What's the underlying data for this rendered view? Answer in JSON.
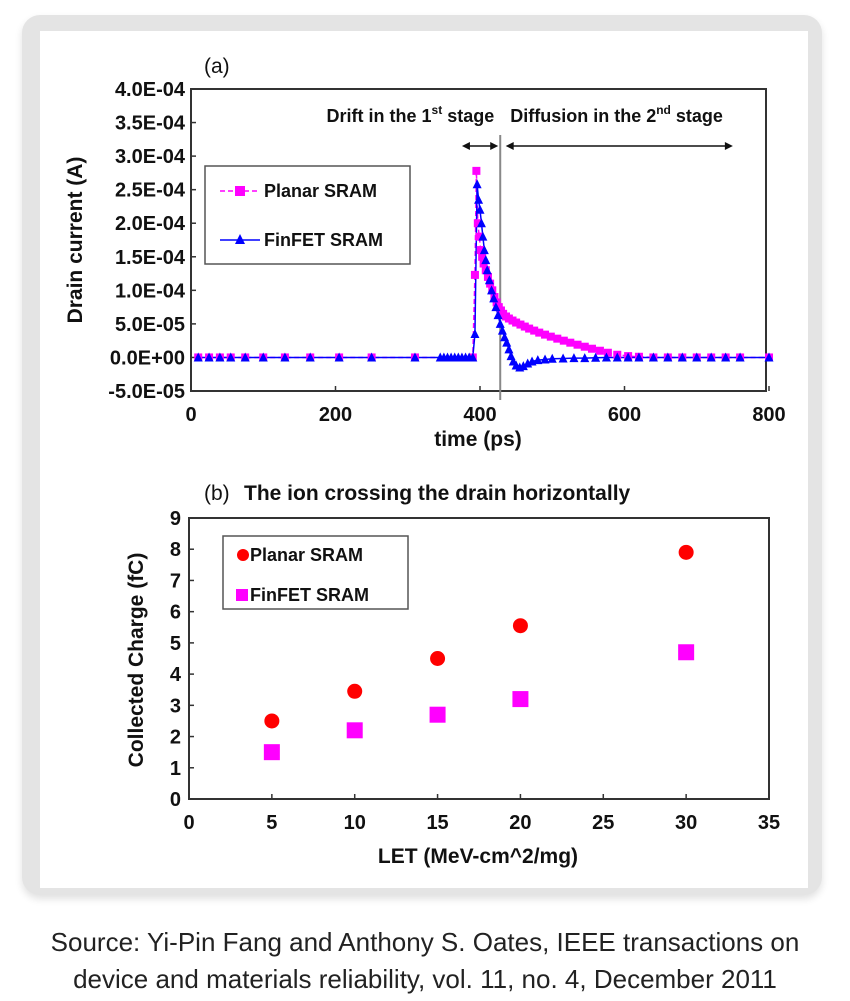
{
  "caption": {
    "line1": "Source: Yi-Pin Fang and Anthony S. Oates, IEEE transactions on",
    "line2": "device and materials reliability, vol. 11, no. 4, December 2011"
  },
  "colors": {
    "planar": "#ff00ff",
    "finfet": "#0000ff",
    "planar_b": "#ff0000",
    "finfet_b": "#ff00ff",
    "frame": "#e4e4e4",
    "axis": "#333333"
  },
  "chart_data": [
    {
      "type": "line",
      "panel_label": "(a)",
      "title": "",
      "xlabel": "time (ps)",
      "ylabel": "Drain current (A)",
      "xlim": [
        0,
        800
      ],
      "ylim": [
        -5e-05,
        0.0004
      ],
      "x_ticks": [
        0,
        200,
        400,
        600,
        800
      ],
      "x_tick_labels": [
        "0",
        "200",
        "400",
        "600",
        "800"
      ],
      "y_ticks": [
        0.0004,
        0.00035,
        0.0003,
        0.00025,
        0.0002,
        0.00015,
        0.0001,
        5e-05,
        0,
        -5e-05
      ],
      "y_tick_labels": [
        "4.0E-04",
        "3.5E-04",
        "3.0E-04",
        "2.5E-04",
        "2.0E-04",
        "1.5E-04",
        "1.0E-04",
        "5.0E-05",
        "0.0E+00",
        "-5.0E-05"
      ],
      "grid": false,
      "legend": {
        "placement": "upper-left",
        "entries": [
          "Planar SRAM",
          "FinFET SRAM"
        ]
      },
      "annotations": {
        "divider_x": 428,
        "stage1": {
          "text": "Drift in the 1",
          "sup": "st",
          "tail": " stage",
          "arrow_from": 375,
          "arrow_to": 428
        },
        "stage2": {
          "text": "Diffusion in the 2",
          "sup": "nd",
          "tail": " stage",
          "arrow_from": 430,
          "arrow_to": 750
        }
      },
      "series": [
        {
          "name": "Planar SRAM",
          "marker": "square",
          "x": [
            10,
            25,
            40,
            55,
            75,
            100,
            130,
            165,
            205,
            250,
            310,
            390,
            393,
            395,
            397,
            399,
            401,
            403,
            405,
            408,
            411,
            414,
            417,
            420,
            423,
            426,
            429,
            432,
            436,
            440,
            445,
            450,
            456,
            462,
            468,
            475,
            482,
            490,
            498,
            507,
            516,
            525,
            535,
            545,
            555,
            566,
            577,
            590,
            605,
            620,
            640,
            660,
            680,
            700,
            720,
            740,
            760,
            800
          ],
          "y": [
            0,
            0,
            0,
            0,
            0,
            0,
            0,
            0,
            0,
            0,
            0,
            0,
            0.000123,
            0.000278,
            0.0002,
            0.00018,
            0.00016,
            0.00015,
            0.00014,
            0.00013,
            0.00012,
            0.00011,
            0.0001,
            9e-05,
            8.2e-05,
            7.5e-05,
            7e-05,
            6.5e-05,
            6.1e-05,
            5.8e-05,
            5.5e-05,
            5.2e-05,
            4.9e-05,
            4.6e-05,
            4.3e-05,
            4e-05,
            3.7e-05,
            3.4e-05,
            3.1e-05,
            2.8e-05,
            2.5e-05,
            2.2e-05,
            1.9e-05,
            1.6e-05,
            1.3e-05,
            1e-05,
            7e-06,
            4e-06,
            2e-06,
            1e-06,
            0,
            0,
            0,
            0,
            0,
            0,
            0,
            0
          ]
        },
        {
          "name": "FinFET SRAM",
          "marker": "triangle",
          "x": [
            10,
            25,
            40,
            55,
            75,
            100,
            130,
            165,
            205,
            250,
            310,
            345,
            350,
            355,
            360,
            365,
            370,
            375,
            380,
            385,
            390,
            393,
            396,
            398,
            400,
            402,
            404,
            406,
            408,
            410,
            413,
            416,
            419,
            422,
            425,
            428,
            431,
            434,
            437,
            440,
            443,
            446,
            450,
            455,
            460,
            466,
            472,
            480,
            490,
            500,
            515,
            530,
            545,
            560,
            575,
            590,
            605,
            620,
            640,
            660,
            680,
            700,
            720,
            740,
            760,
            800
          ],
          "y": [
            0,
            0,
            0,
            0,
            0,
            0,
            0,
            0,
            0,
            0,
            0,
            0,
            0,
            0,
            0,
            0,
            0,
            0,
            0,
            0,
            0,
            3.5e-05,
            0.000258,
            0.000235,
            0.00022,
            0.0002,
            0.00018,
            0.00016,
            0.000145,
            0.00013,
            0.000115,
            0.0001,
            8.8e-05,
            7.5e-05,
            6.3e-05,
            5e-05,
            4e-05,
            3e-05,
            2.2e-05,
            1.2e-05,
            2e-06,
            -6e-06,
            -1.2e-05,
            -1.5e-05,
            -1.3e-05,
            -9e-06,
            -6e-06,
            -4e-06,
            -3e-06,
            -2e-06,
            -1.5e-06,
            -1e-06,
            -1e-06,
            -5e-07,
            0,
            0,
            0,
            0,
            0,
            0,
            0,
            0,
            0,
            0,
            0,
            0
          ]
        }
      ]
    },
    {
      "type": "scatter",
      "panel_label": "(b)",
      "title": "The ion crossing the drain horizontally",
      "xlabel": "LET (MeV-cm^2/mg)",
      "ylabel": "Collected Charge (fC)",
      "xlim": [
        0,
        35
      ],
      "ylim": [
        0,
        9
      ],
      "x_ticks": [
        0,
        5,
        10,
        15,
        20,
        25,
        30,
        35
      ],
      "x_tick_labels": [
        "0",
        "5",
        "10",
        "15",
        "20",
        "25",
        "30",
        "35"
      ],
      "y_ticks": [
        0,
        1,
        2,
        3,
        4,
        5,
        6,
        7,
        8,
        9
      ],
      "y_tick_labels": [
        "0",
        "1",
        "2",
        "3",
        "4",
        "5",
        "6",
        "7",
        "8",
        "9"
      ],
      "grid": false,
      "legend": {
        "placement": "upper-left",
        "entries": [
          "Planar SRAM",
          "FinFET SRAM"
        ]
      },
      "series": [
        {
          "name": "Planar SRAM",
          "marker": "circle",
          "x": [
            5,
            10,
            15,
            20,
            30
          ],
          "y": [
            2.5,
            3.45,
            4.5,
            5.55,
            7.9
          ]
        },
        {
          "name": "FinFET SRAM",
          "marker": "square",
          "x": [
            5,
            10,
            15,
            20,
            30
          ],
          "y": [
            1.5,
            2.2,
            2.7,
            3.2,
            4.7
          ]
        }
      ]
    }
  ]
}
